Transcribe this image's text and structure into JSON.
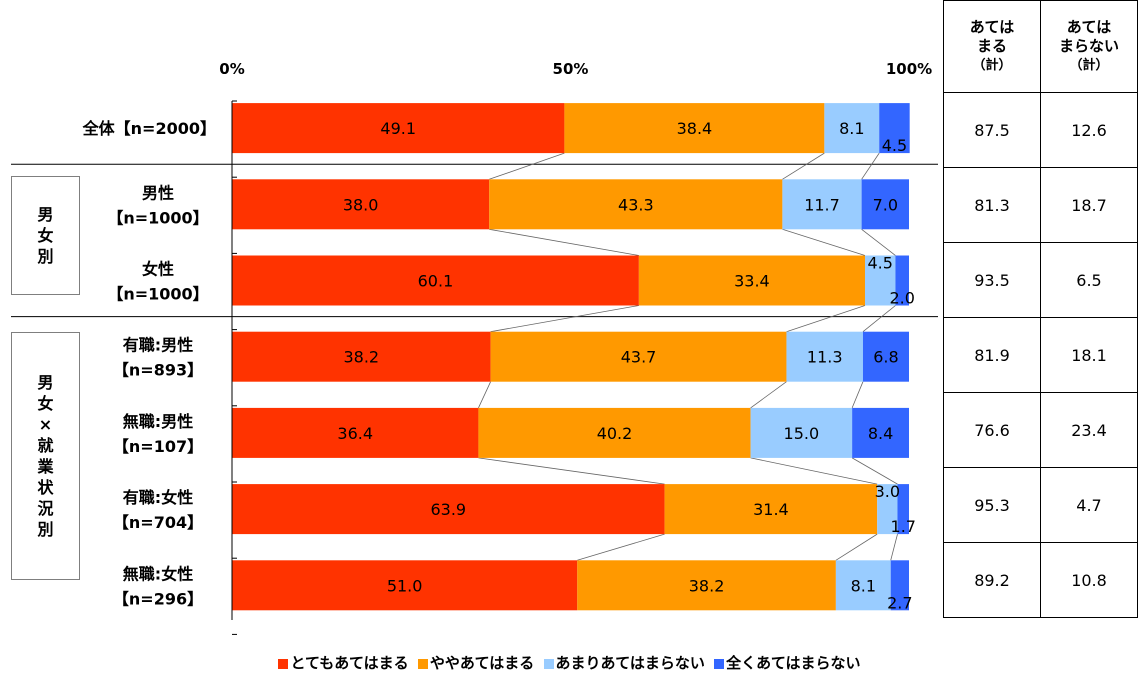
{
  "chart_data": {
    "type": "bar",
    "orientation": "horizontal",
    "stacked": "100%",
    "xlim": [
      0,
      100
    ],
    "x_ticks": [
      "0%",
      "50%",
      "100%"
    ],
    "categories": [
      {
        "line1": "全体【n=2000】",
        "line2": ""
      },
      {
        "line1": "男性",
        "line2": "【n=1000】"
      },
      {
        "line1": "女性",
        "line2": "【n=1000】"
      },
      {
        "line1": "有職:男性",
        "line2": "【n=893】"
      },
      {
        "line1": "無職:男性",
        "line2": "【n=107】"
      },
      {
        "line1": "有職:女性",
        "line2": "【n=704】"
      },
      {
        "line1": "無職:女性",
        "line2": "【n=296】"
      }
    ],
    "series": [
      {
        "name": "とてもあてはまる",
        "color": "#ff3300",
        "values": [
          49.1,
          38.0,
          60.1,
          38.2,
          36.4,
          63.9,
          51.0
        ]
      },
      {
        "name": "ややあてはまる",
        "color": "#ff9900",
        "values": [
          38.4,
          43.3,
          33.4,
          43.7,
          40.2,
          31.4,
          38.2
        ]
      },
      {
        "name": "あまりあてはまらない",
        "color": "#99ccff",
        "values": [
          8.1,
          11.7,
          4.5,
          11.3,
          15.0,
          3.0,
          8.1
        ]
      },
      {
        "name": "全くあてはまらない",
        "color": "#3366ff",
        "values": [
          4.5,
          7.0,
          2.0,
          6.8,
          8.4,
          1.7,
          2.7
        ]
      }
    ],
    "groups": [
      {
        "label": "男\n女\n別",
        "rows": [
          1,
          2
        ]
      },
      {
        "label": "男\n女\n×\n就\n業\n状\n況\n別",
        "rows": [
          3,
          4,
          5,
          6
        ]
      }
    ],
    "legend_position": "bottom"
  },
  "totals_table": {
    "headers": [
      {
        "line1": "あては",
        "line2": "まる",
        "line3": "（計）"
      },
      {
        "line1": "あては",
        "line2": "まらない",
        "line3": "（計）"
      }
    ],
    "rows": [
      [
        "87.5",
        "12.6"
      ],
      [
        "81.3",
        "18.7"
      ],
      [
        "93.5",
        "6.5"
      ],
      [
        "81.9",
        "18.1"
      ],
      [
        "76.6",
        "23.4"
      ],
      [
        "95.3",
        "4.7"
      ],
      [
        "89.2",
        "10.8"
      ]
    ]
  }
}
